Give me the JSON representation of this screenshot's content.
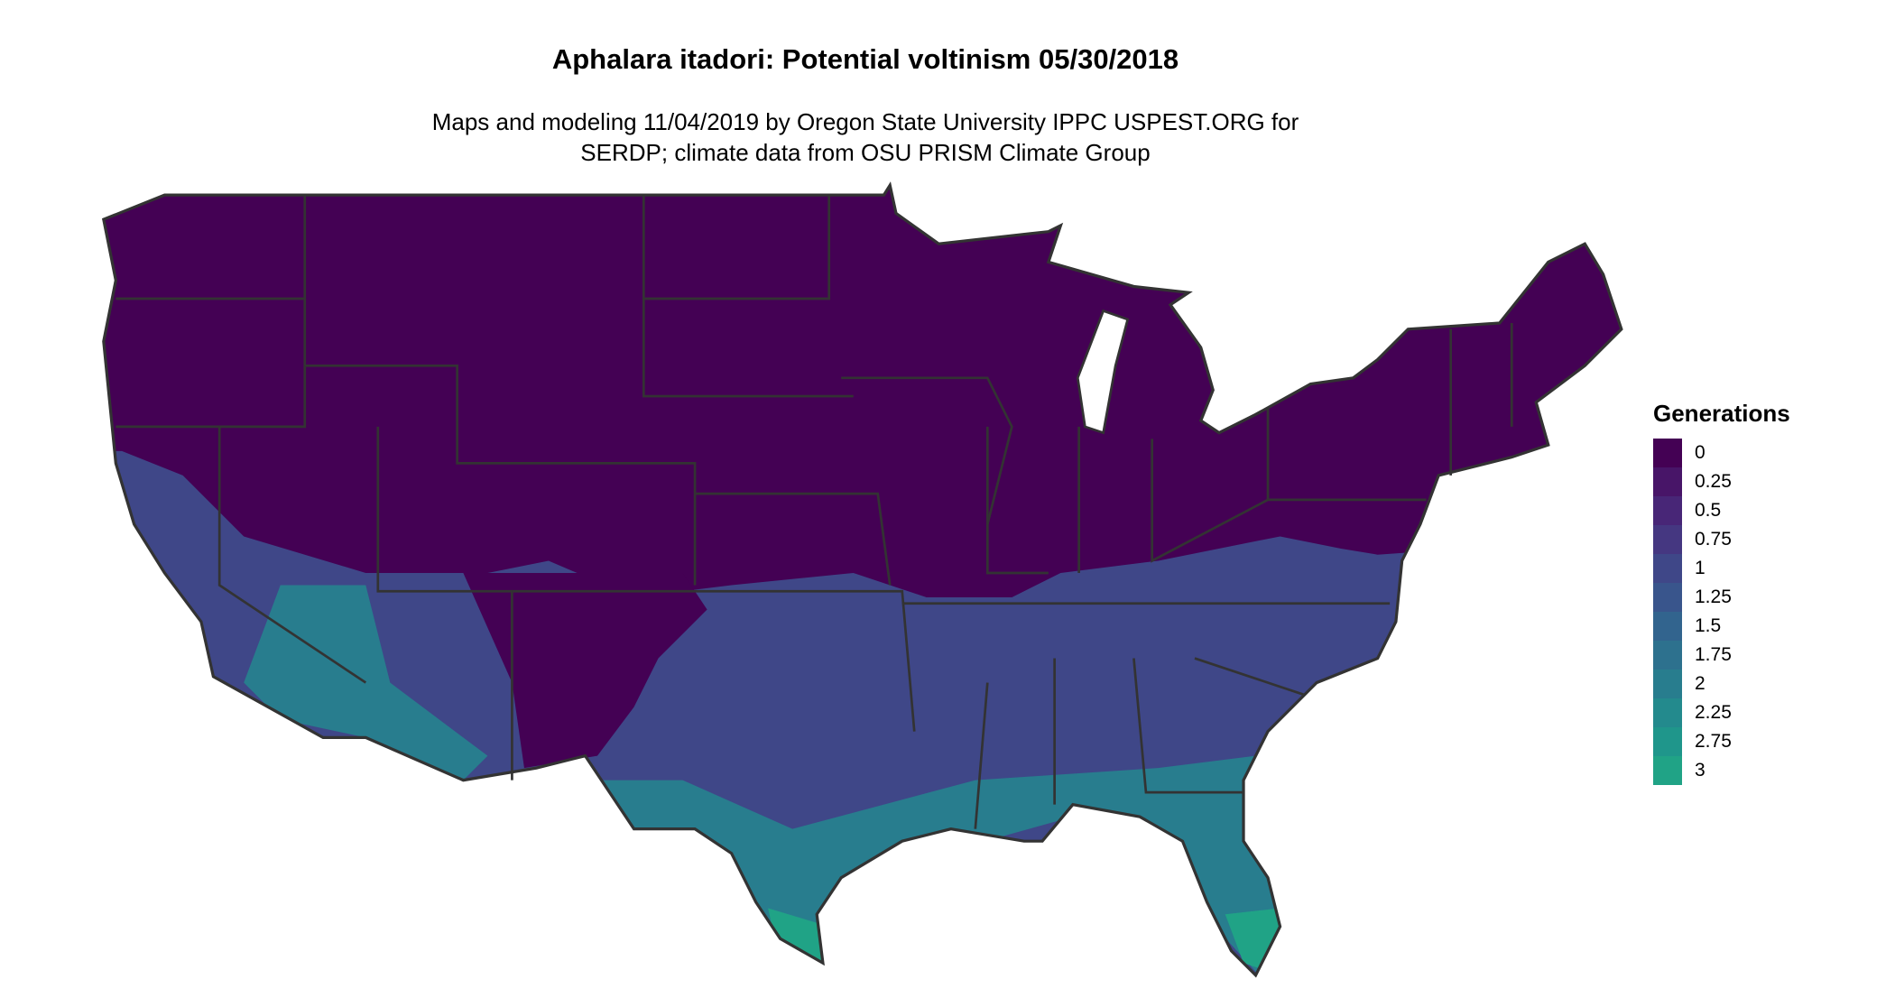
{
  "chart_data": {
    "type": "heatmap",
    "title": "Aphalara itadori: Potential voltinism 05/30/2018",
    "subtitle_lines": [
      "Maps and modeling 11/04/2019 by Oregon State University IPPC USPEST.ORG for",
      "SERDP; climate data from OSU PRISM Climate Group"
    ],
    "legend": {
      "title": "Generations",
      "placement": "right",
      "keys": [
        {
          "label": "0",
          "color": "#440154"
        },
        {
          "label": "0.25",
          "color": "#481568"
        },
        {
          "label": "0.5",
          "color": "#482677"
        },
        {
          "label": "0.75",
          "color": "#453781"
        },
        {
          "label": "1",
          "color": "#3f4788"
        },
        {
          "label": "1.25",
          "color": "#39558c"
        },
        {
          "label": "1.5",
          "color": "#32648e"
        },
        {
          "label": "1.75",
          "color": "#2d718e"
        },
        {
          "label": "2",
          "color": "#287d8e"
        },
        {
          "label": "2.25",
          "color": "#238a8d"
        },
        {
          "label": "2.75",
          "color": "#1f968b"
        },
        {
          "label": "3",
          "color": "#20a386"
        }
      ]
    },
    "regions": [
      {
        "area": "northern and central US, New Mexico",
        "generations": 0
      },
      {
        "area": "southern US, southern California/Nevada",
        "generations": 1
      },
      {
        "area": "Gulf coast, southern Arizona, Florida",
        "generations": 2
      },
      {
        "area": "southern tip of Texas and Florida",
        "generations": 3
      }
    ],
    "border_color": "#333333"
  }
}
